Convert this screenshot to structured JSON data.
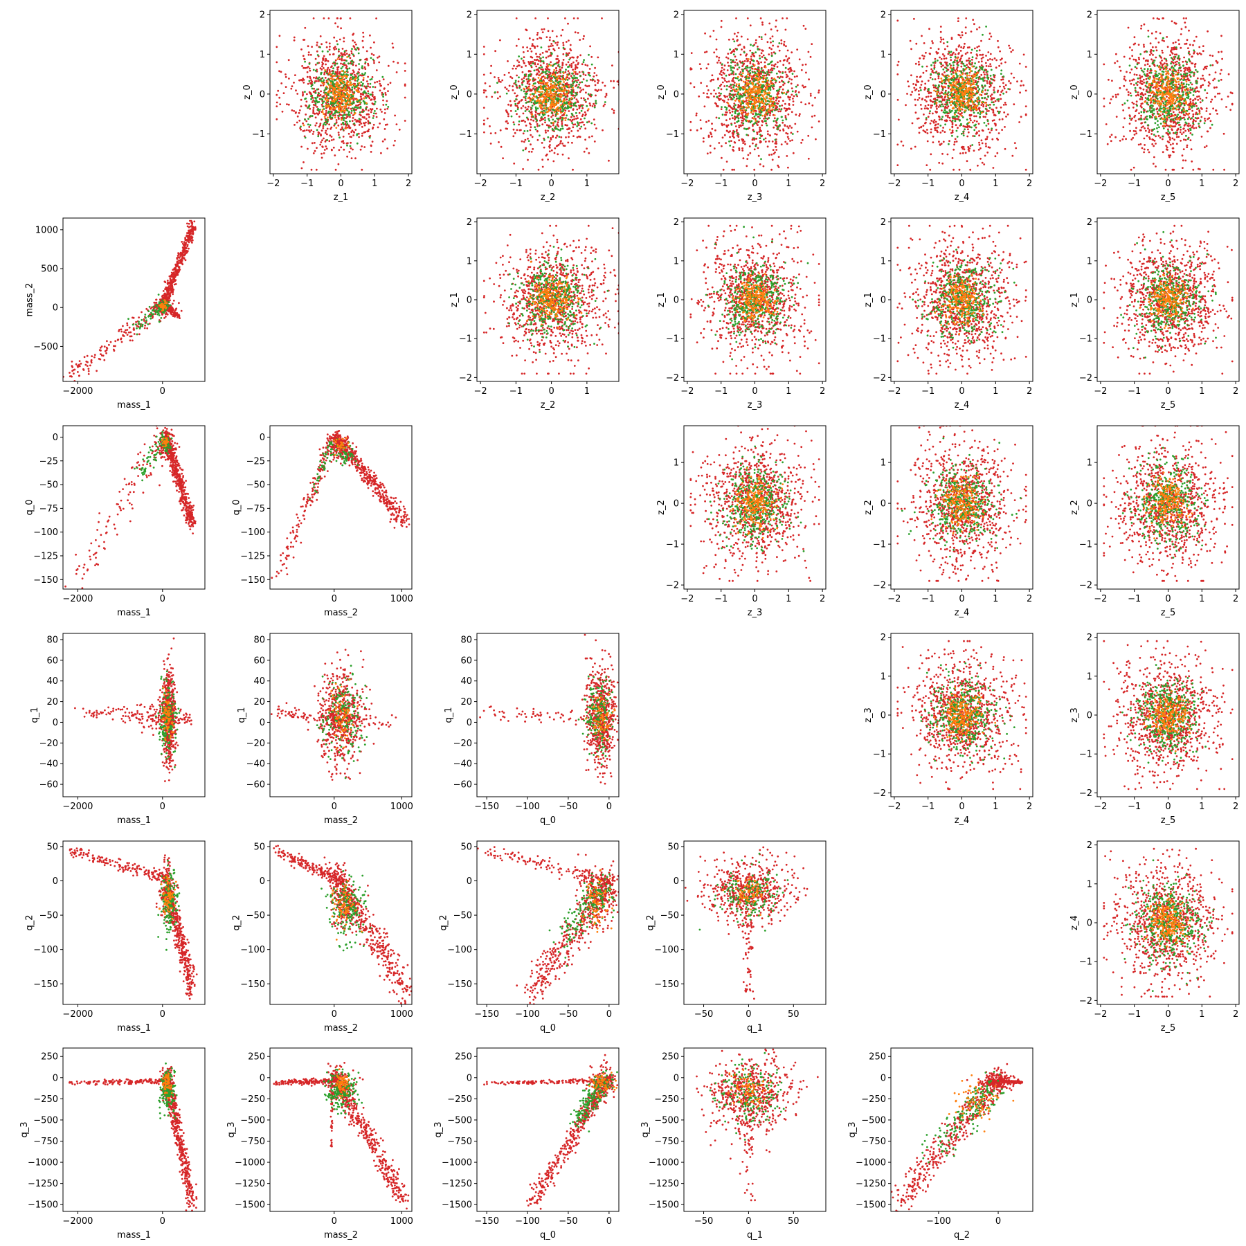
{
  "figure": {
    "title": ""
  },
  "colors": {
    "outer": "#d62728",
    "middle": "#2ca02c",
    "inner": "#ff7f0e"
  },
  "chart_data": {
    "type": "scatter",
    "grid": false,
    "layout": "pair-plot upper & lower triangle, 6x6 grid",
    "variables": {
      "z_0": {
        "range": [
          -2,
          2.1
        ],
        "ticks": [
          -1,
          0,
          1,
          2
        ]
      },
      "z_1": {
        "range": [
          -2.1,
          2.1
        ],
        "ticks": [
          -2,
          -1,
          0,
          1,
          2
        ]
      },
      "z_2": {
        "range": [
          -2.1,
          1.9
        ],
        "ticks": [
          -2,
          -1,
          0,
          1
        ]
      },
      "z_3": {
        "range": [
          -2.1,
          2.1
        ],
        "ticks": [
          -2,
          -1,
          0,
          1,
          2
        ]
      },
      "z_4": {
        "range": [
          -2.1,
          2.1
        ],
        "ticks": [
          -2,
          -1,
          0,
          1,
          2
        ]
      },
      "z_5": {
        "range": [
          -2.1,
          2.1
        ],
        "ticks": [
          -2,
          -1,
          0,
          1,
          2
        ]
      },
      "mass_1": {
        "range": [
          -2350,
          1000
        ],
        "ticks": [
          -2000,
          0
        ]
      },
      "mass_2": {
        "range": [
          -950,
          1150
        ],
        "ticks": [
          -500,
          0,
          500,
          1000
        ]
      },
      "mass_2_x": {
        "range": [
          -950,
          1150
        ],
        "ticks": [
          0,
          1000
        ]
      },
      "q_0": {
        "range": [
          -160,
          12
        ],
        "ticks": [
          -150,
          -125,
          -100,
          -75,
          -50,
          -25,
          0
        ]
      },
      "q_0_x": {
        "range": [
          -162,
          12
        ],
        "ticks": [
          -150,
          -100,
          -50,
          0
        ]
      },
      "q_1": {
        "range": [
          -72,
          86
        ],
        "ticks": [
          -60,
          -40,
          -20,
          0,
          20,
          40,
          60,
          80
        ]
      },
      "q_1_x": {
        "range": [
          -72,
          86
        ],
        "ticks": [
          -50,
          0,
          50
        ]
      },
      "q_2": {
        "range": [
          -180,
          58
        ],
        "ticks": [
          -150,
          -100,
          -50,
          0,
          50
        ]
      },
      "q_2_x": {
        "range": [
          -180,
          58
        ],
        "ticks": [
          -100,
          0
        ]
      },
      "q_3": {
        "range": [
          -1580,
          350
        ],
        "ticks": [
          -1500,
          -1250,
          -1000,
          -750,
          -500,
          -250,
          0,
          250
        ]
      }
    },
    "panels": [
      {
        "row": 0,
        "col": 1,
        "x": "z_1",
        "y": "z_0",
        "shape": "blob"
      },
      {
        "row": 0,
        "col": 2,
        "x": "z_2",
        "y": "z_0",
        "shape": "blob"
      },
      {
        "row": 0,
        "col": 3,
        "x": "z_3",
        "y": "z_0",
        "shape": "blob"
      },
      {
        "row": 0,
        "col": 4,
        "x": "z_4",
        "y": "z_0",
        "shape": "blob"
      },
      {
        "row": 0,
        "col": 5,
        "x": "z_5",
        "y": "z_0",
        "shape": "blob"
      },
      {
        "row": 1,
        "col": 0,
        "x": "mass_1",
        "y": "mass_2",
        "shape": "mass1_mass2"
      },
      {
        "row": 1,
        "col": 2,
        "x": "z_2",
        "y": "z_1",
        "shape": "blob"
      },
      {
        "row": 1,
        "col": 3,
        "x": "z_3",
        "y": "z_1",
        "shape": "blob"
      },
      {
        "row": 1,
        "col": 4,
        "x": "z_4",
        "y": "z_1",
        "shape": "blob"
      },
      {
        "row": 1,
        "col": 5,
        "x": "z_5",
        "y": "z_1",
        "shape": "blob"
      },
      {
        "row": 2,
        "col": 0,
        "x": "mass_1",
        "y": "q_0",
        "shape": "mass1_q0"
      },
      {
        "row": 2,
        "col": 1,
        "x": "mass_2_x",
        "y": "q_0",
        "shape": "mass2_q0"
      },
      {
        "row": 2,
        "col": 3,
        "x": "z_3",
        "y": "z_2",
        "shape": "blob"
      },
      {
        "row": 2,
        "col": 4,
        "x": "z_4",
        "y": "z_2",
        "shape": "blob"
      },
      {
        "row": 2,
        "col": 5,
        "x": "z_5",
        "y": "z_2",
        "shape": "blob"
      },
      {
        "row": 3,
        "col": 0,
        "x": "mass_1",
        "y": "q_1",
        "shape": "mass1_q1"
      },
      {
        "row": 3,
        "col": 1,
        "x": "mass_2_x",
        "y": "q_1",
        "shape": "mass2_q1"
      },
      {
        "row": 3,
        "col": 2,
        "x": "q_0_x",
        "y": "q_1",
        "shape": "q0_q1"
      },
      {
        "row": 3,
        "col": 4,
        "x": "z_4",
        "y": "z_3",
        "shape": "blob"
      },
      {
        "row": 3,
        "col": 5,
        "x": "z_5",
        "y": "z_3",
        "shape": "blob"
      },
      {
        "row": 4,
        "col": 0,
        "x": "mass_1",
        "y": "q_2",
        "shape": "mass1_q2"
      },
      {
        "row": 4,
        "col": 1,
        "x": "mass_2_x",
        "y": "q_2",
        "shape": "mass2_q2"
      },
      {
        "row": 4,
        "col": 2,
        "x": "q_0_x",
        "y": "q_2",
        "shape": "q0_q2"
      },
      {
        "row": 4,
        "col": 3,
        "x": "q_1_x",
        "y": "q_2",
        "shape": "q1_q2"
      },
      {
        "row": 4,
        "col": 5,
        "x": "z_5",
        "y": "z_4",
        "shape": "blob"
      },
      {
        "row": 5,
        "col": 0,
        "x": "mass_1",
        "y": "q_3",
        "shape": "mass1_q3"
      },
      {
        "row": 5,
        "col": 1,
        "x": "mass_2_x",
        "y": "q_3",
        "shape": "mass2_q3"
      },
      {
        "row": 5,
        "col": 2,
        "x": "q_0_x",
        "y": "q_3",
        "shape": "q0_q3"
      },
      {
        "row": 5,
        "col": 3,
        "x": "q_1_x",
        "y": "q_3",
        "shape": "q1_q3"
      },
      {
        "row": 5,
        "col": 4,
        "x": "q_2_x",
        "y": "q_3",
        "shape": "q2_q3"
      }
    ]
  }
}
